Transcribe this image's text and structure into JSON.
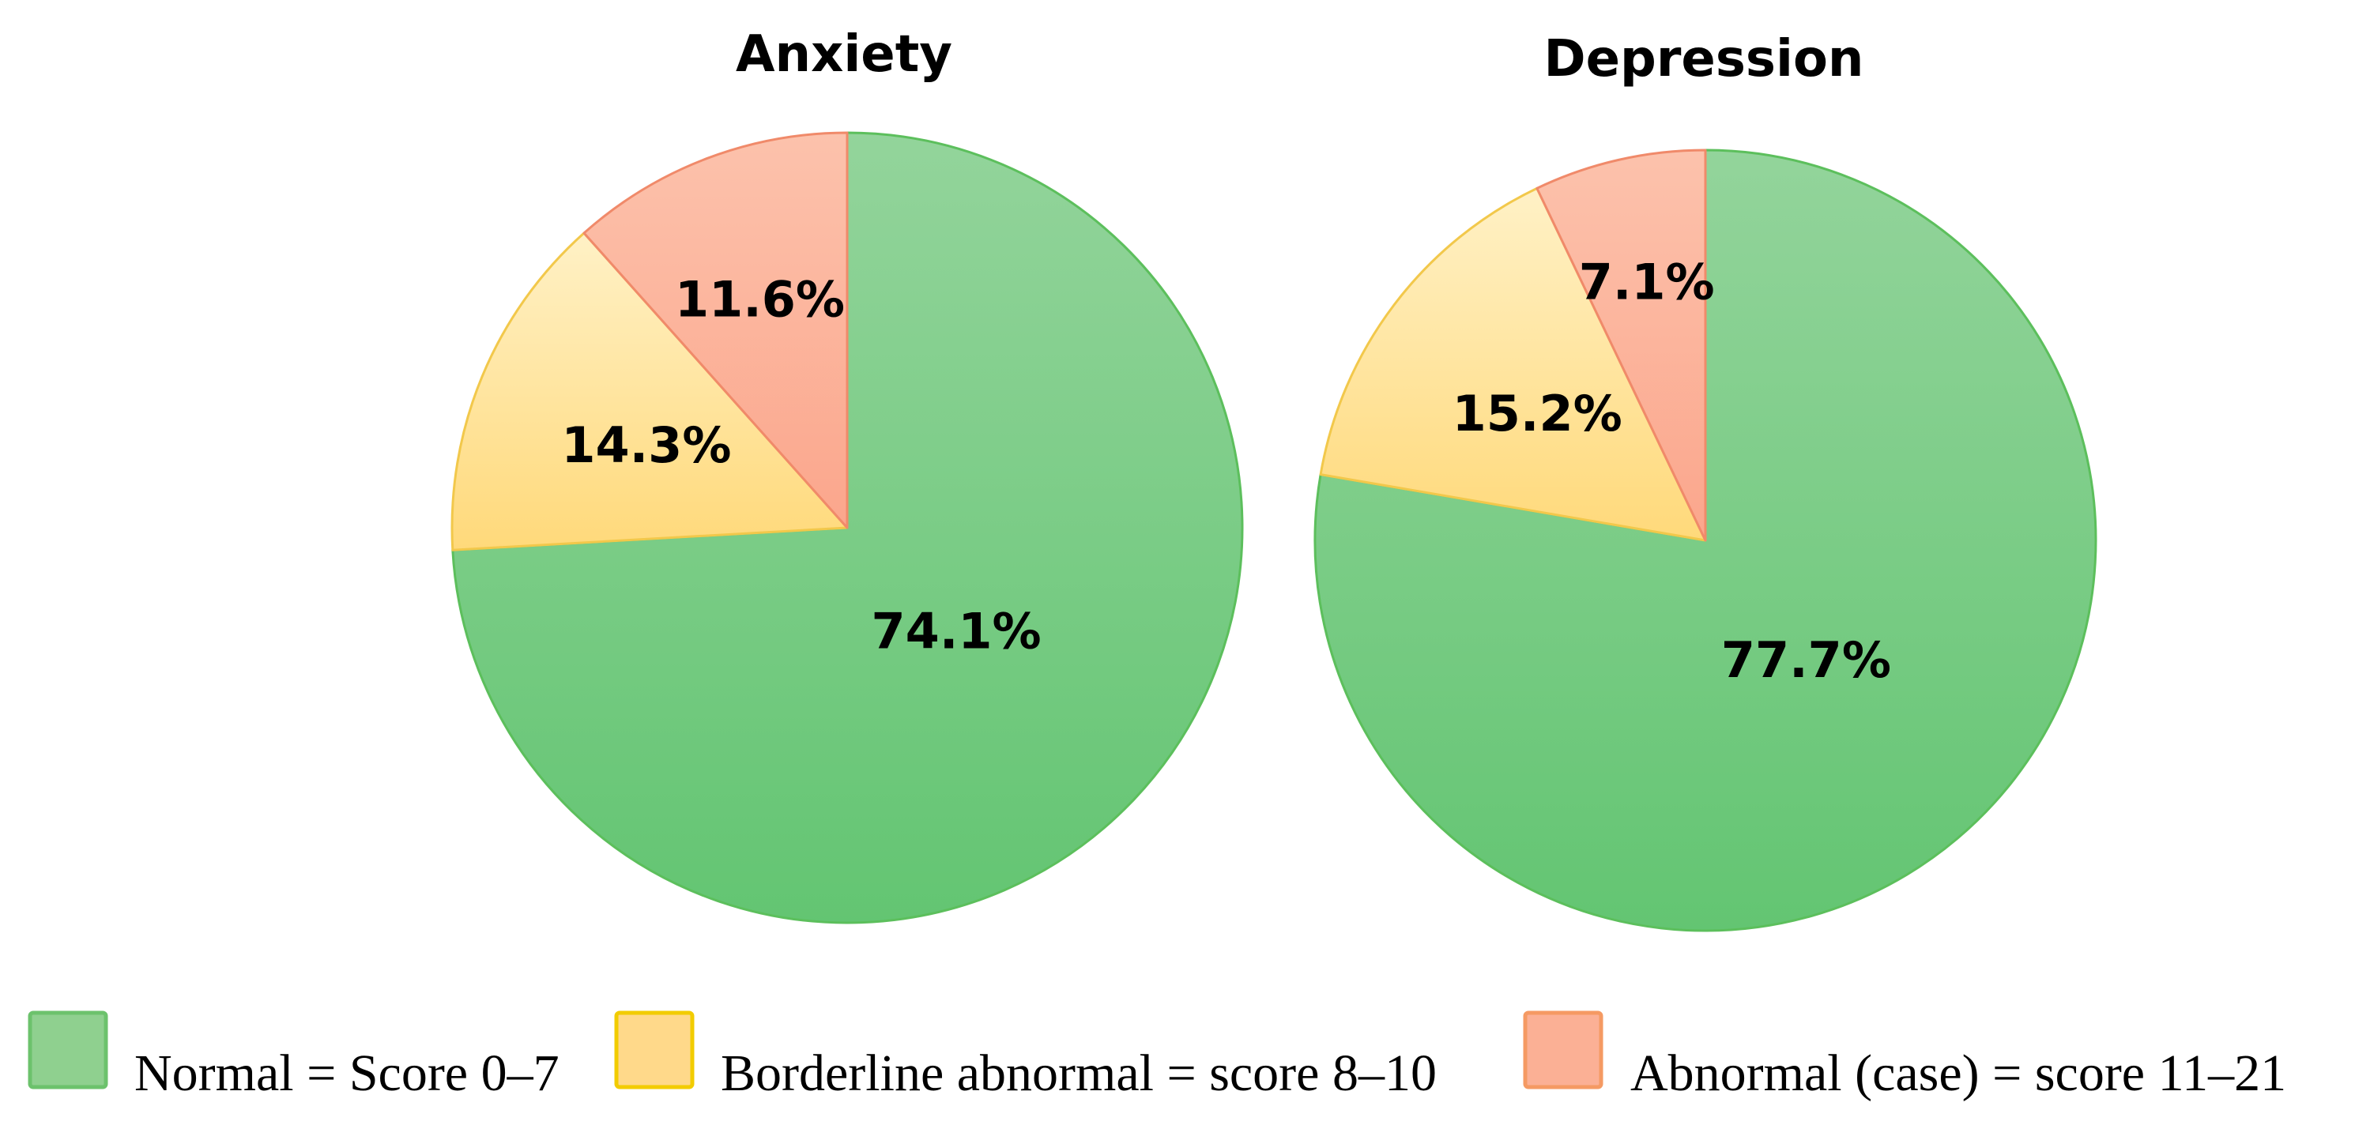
{
  "chart_data": {
    "type": "pie",
    "legend": [
      {
        "key": "normal",
        "label": "Normal = Score 0–7",
        "fill_top": "#93d49b",
        "fill_bottom": "#63c572",
        "stroke": "#5cbf5c",
        "swatch_fill": "#8fd08f",
        "swatch_stroke": "#6cc26c"
      },
      {
        "key": "borderline",
        "label": "Borderline abnormal = score 8–10",
        "fill_top": "#fff1c6",
        "fill_bottom": "#ffd97a",
        "stroke": "#f2c84b",
        "swatch_fill": "#ffd98a",
        "swatch_stroke": "#f2cc00"
      },
      {
        "key": "abnormal",
        "label": "Abnormal (case) = score 11–21",
        "fill_top": "#fcc2ac",
        "fill_bottom": "#fba68c",
        "stroke": "#f08a6a",
        "swatch_fill": "#fbb095",
        "swatch_stroke": "#f59a63"
      }
    ],
    "charts": [
      {
        "title": "Anxiety",
        "slices": [
          {
            "category": "normal",
            "value": 74.1,
            "label": "74.1%"
          },
          {
            "category": "borderline",
            "value": 14.3,
            "label": "14.3%"
          },
          {
            "category": "abnormal",
            "value": 11.6,
            "label": "11.6%"
          }
        ]
      },
      {
        "title": "Depression",
        "slices": [
          {
            "category": "normal",
            "value": 77.7,
            "label": "77.7%"
          },
          {
            "category": "borderline",
            "value": 15.2,
            "label": "15.2%"
          },
          {
            "category": "abnormal",
            "value": 7.1,
            "label": "7.1%"
          }
        ]
      }
    ]
  }
}
